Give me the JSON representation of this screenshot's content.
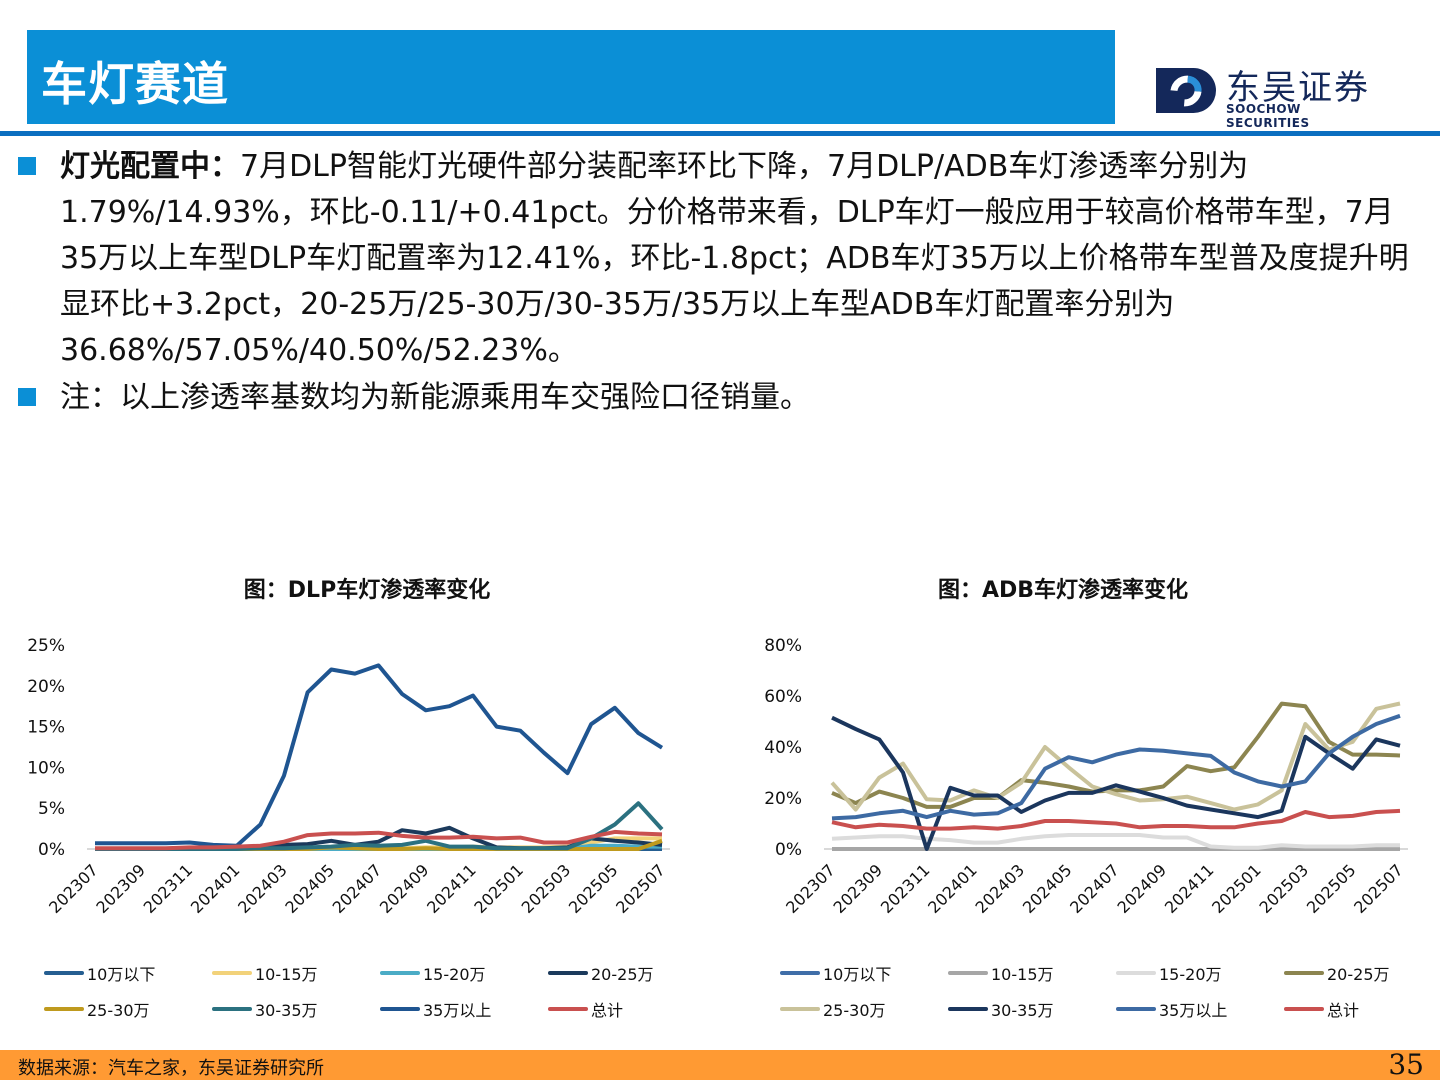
{
  "header": {
    "title": "车灯赛道",
    "logo_cn": "东吴证券",
    "logo_en": "SOOCHOW SECURITIES",
    "accent": "#0b8fd6"
  },
  "body": {
    "bullet1_bold": "灯光配置中：",
    "bullet1_text": "7月DLP智能灯光硬件部分装配率环比下降，7月DLP/ADB车灯渗透率分别为1.79%/14.93%，环比-0.11/+0.41pct。分价格带来看，DLP车灯一般应用于较高价格带车型，7月35万以上车型DLP车灯配置率为12.41%，环比-1.8pct；ADB车灯35万以上价格带车型普及度提升明显环比+3.2pct，20-25万/25-30万/30-35万/35万以上车型ADB车灯配置率分别为36.68%/57.05%/40.50%/52.23%。",
    "bullet2_text": "注：以上渗透率基数均为新能源乘用车交强险口径销量。"
  },
  "chart_data": [
    {
      "type": "line",
      "title": "图：DLP车灯渗透率变化",
      "x": [
        "202307",
        "202308",
        "202309",
        "202310",
        "202311",
        "202312",
        "202401",
        "202402",
        "202403",
        "202404",
        "202405",
        "202406",
        "202407",
        "202408",
        "202409",
        "202410",
        "202411",
        "202412",
        "202501",
        "202502",
        "202503",
        "202504",
        "202505",
        "202506",
        "202507"
      ],
      "xticks": [
        "202307",
        "202309",
        "202311",
        "202401",
        "202403",
        "202405",
        "202407",
        "202409",
        "202411",
        "202501",
        "202503",
        "202505",
        "202507"
      ],
      "yticks": [
        "0%",
        "5%",
        "10%",
        "15%",
        "20%",
        "25%"
      ],
      "ylim": [
        0,
        25
      ],
      "yunit": "%",
      "legend": "bottom",
      "series": [
        {
          "name": "10万以下",
          "color": "#255e91",
          "values": [
            0,
            0,
            0,
            0,
            0,
            0,
            0,
            0,
            0,
            0,
            0,
            0,
            0,
            0,
            0,
            0,
            0,
            0,
            0,
            0,
            0,
            0,
            0,
            0,
            0
          ]
        },
        {
          "name": "10-15万",
          "color": "#f2d27a",
          "values": [
            0,
            0,
            0,
            0,
            0,
            0,
            0,
            0,
            0,
            0,
            0.1,
            0.1,
            0.1,
            0.1,
            0.2,
            0.2,
            0.3,
            0.2,
            0.2,
            0.2,
            0.3,
            0.8,
            1.3,
            1.3,
            1.3
          ]
        },
        {
          "name": "15-20万",
          "color": "#4bacc6",
          "values": [
            0,
            0,
            0,
            0,
            0,
            0,
            0,
            0,
            0,
            0,
            0,
            0,
            0,
            0,
            0,
            0,
            0,
            0,
            0,
            0,
            0,
            0.4,
            0.4,
            0.3,
            0.3
          ]
        },
        {
          "name": "20-25万",
          "color": "#1b3a5c",
          "values": [
            0,
            0,
            0,
            0,
            0,
            0,
            0,
            0.3,
            0.5,
            0.6,
            1.0,
            0.5,
            0.9,
            2.3,
            1.9,
            2.6,
            1.3,
            0.2,
            0.1,
            0.1,
            0.2,
            1.3,
            1.0,
            0.8,
            0.5
          ]
        },
        {
          "name": "25-30万",
          "color": "#bf9a1e",
          "values": [
            0,
            0,
            0,
            0,
            0,
            0,
            0,
            0,
            0,
            0,
            0.2,
            0.1,
            0,
            0,
            0.1,
            0,
            0,
            0,
            0,
            0,
            0,
            0,
            0,
            0,
            1.0
          ]
        },
        {
          "name": "30-35万",
          "color": "#2b7180",
          "values": [
            0,
            0,
            0,
            0,
            0,
            0,
            0,
            0.1,
            0.1,
            0.2,
            0.3,
            0.5,
            0.4,
            0.5,
            1.0,
            0.3,
            0.3,
            0.1,
            0.1,
            0.1,
            0.1,
            1.3,
            3.0,
            5.6,
            2.4
          ]
        },
        {
          "name": "35万以上",
          "color": "#1f5591",
          "values": [
            0.7,
            0.7,
            0.7,
            0.7,
            0.8,
            0.5,
            0.4,
            3.0,
            9.0,
            19.2,
            22.0,
            21.5,
            22.5,
            19.0,
            17.0,
            17.5,
            18.8,
            15.0,
            14.5,
            11.8,
            9.3,
            15.3,
            17.3,
            14.2,
            12.41
          ]
        },
        {
          "name": "总计",
          "color": "#c9504f",
          "values": [
            0.1,
            0.1,
            0.1,
            0.1,
            0.2,
            0.2,
            0.3,
            0.4,
            0.9,
            1.7,
            1.9,
            1.9,
            2.0,
            1.6,
            1.4,
            1.4,
            1.5,
            1.3,
            1.4,
            0.8,
            0.8,
            1.5,
            2.1,
            1.9,
            1.79
          ]
        }
      ]
    },
    {
      "type": "line",
      "title": "图：ADB车灯渗透率变化",
      "x": [
        "202307",
        "202308",
        "202309",
        "202310",
        "202311",
        "202312",
        "202401",
        "202402",
        "202403",
        "202404",
        "202405",
        "202406",
        "202407",
        "202408",
        "202409",
        "202410",
        "202411",
        "202412",
        "202501",
        "202502",
        "202503",
        "202504",
        "202505",
        "202506",
        "202507"
      ],
      "xticks": [
        "202307",
        "202309",
        "202311",
        "202401",
        "202403",
        "202405",
        "202407",
        "202409",
        "202411",
        "202501",
        "202503",
        "202505",
        "202507"
      ],
      "yticks": [
        "0%",
        "20%",
        "40%",
        "60%",
        "80%"
      ],
      "ylim": [
        0,
        80
      ],
      "yunit": "%",
      "legend": "bottom",
      "series": [
        {
          "name": "10万以下",
          "color": "#3f6ea8",
          "values": [
            0,
            0,
            0,
            0,
            0,
            0,
            0,
            0,
            0,
            0,
            0,
            0,
            0,
            0,
            0,
            0,
            0,
            0,
            0,
            0,
            0,
            0,
            0,
            0,
            0
          ]
        },
        {
          "name": "10-15万",
          "color": "#a6a6a6",
          "values": [
            0,
            0,
            0,
            0,
            0,
            0,
            0,
            0,
            0,
            0,
            0,
            0,
            0,
            0,
            0,
            0,
            0,
            0,
            0,
            0,
            0,
            0,
            0,
            0,
            0
          ]
        },
        {
          "name": "15-20万",
          "color": "#dcdcdc",
          "values": [
            4,
            4.5,
            5,
            5,
            4,
            3.5,
            2.5,
            2.5,
            4,
            5,
            5.5,
            5.5,
            5.5,
            5.5,
            4.5,
            4.5,
            1,
            0.5,
            0.5,
            1.5,
            1,
            1,
            1,
            1.5,
            1.5
          ]
        },
        {
          "name": "20-25万",
          "color": "#8c8550",
          "values": [
            22,
            18,
            22.5,
            20,
            16.5,
            16.5,
            20,
            20,
            27,
            26,
            24.5,
            22.5,
            23,
            23,
            24.5,
            32.5,
            30.5,
            32,
            44,
            57,
            56,
            42,
            37,
            37,
            36.68
          ]
        },
        {
          "name": "25-30万",
          "color": "#c9c29a",
          "values": [
            26,
            15.5,
            28,
            33.5,
            19.5,
            19,
            23,
            20,
            26,
            40,
            32,
            24.5,
            21.5,
            19,
            19.5,
            20.5,
            18,
            15.5,
            17.5,
            23,
            49,
            39,
            42,
            55,
            57.05
          ]
        },
        {
          "name": "30-35万",
          "color": "#1b365d",
          "values": [
            51.5,
            47,
            43,
            30,
            0,
            24,
            21,
            21,
            14.5,
            19,
            22,
            22,
            25,
            22.5,
            20,
            17,
            15.5,
            14,
            12.5,
            15,
            44,
            37.5,
            31.5,
            43,
            40.5
          ]
        },
        {
          "name": "35万以上",
          "color": "#3d6aa3",
          "values": [
            12,
            12.5,
            14,
            15,
            12.5,
            15,
            13.5,
            14,
            18,
            31.5,
            36,
            34,
            37,
            39,
            38.5,
            37.5,
            36.5,
            30,
            26.5,
            24.5,
            26.5,
            37.5,
            44,
            49,
            52.23
          ]
        },
        {
          "name": "总计",
          "color": "#c9504f",
          "values": [
            10.5,
            8.5,
            9.5,
            9,
            8,
            8,
            8.5,
            8,
            9,
            11,
            11,
            10.5,
            10,
            8.5,
            9,
            9,
            8.5,
            8.5,
            10,
            11,
            14.5,
            12.5,
            13,
            14.5,
            14.93
          ]
        }
      ]
    }
  ],
  "footer": {
    "source": "数据来源：汽车之家，东吴证券研究所",
    "page": "35",
    "color": "#ff9a33"
  }
}
